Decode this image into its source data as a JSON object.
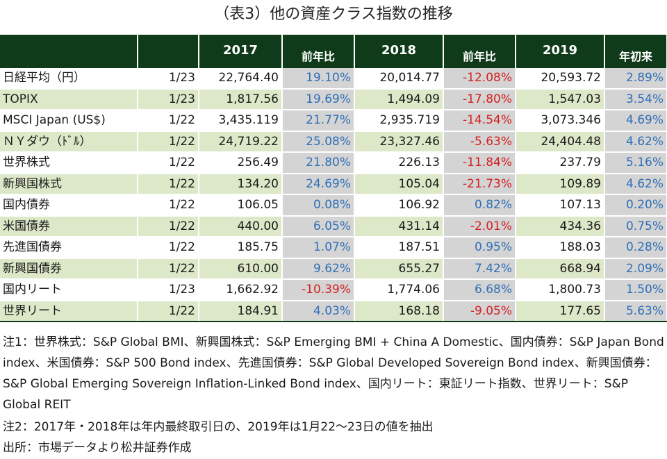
{
  "title": "（表3）他の資産クラス指数の推移",
  "header": {
    "col_2017": "2017",
    "col_chg1": "前年比",
    "col_2018": "2018",
    "col_chg2": "前年比",
    "col_2019": "2019",
    "col_ytd": "年初来"
  },
  "rows": [
    {
      "name": "日経平均（円）",
      "date": "1/23",
      "v2017": "22,764.40",
      "c2017": "19.10%",
      "v2018": "20,014.77",
      "c2018": "-12.08%",
      "v2019": "20,593.72",
      "ytd": "2.89%"
    },
    {
      "name": "TOPIX",
      "date": "1/23",
      "v2017": "1,817.56",
      "c2017": "19.69%",
      "v2018": "1,494.09",
      "c2018": "-17.80%",
      "v2019": "1,547.03",
      "ytd": "3.54%"
    },
    {
      "name": "MSCI Japan (US$)",
      "date": "1/22",
      "v2017": "3,435.119",
      "c2017": "21.77%",
      "v2018": "2,935.719",
      "c2018": "-14.54%",
      "v2019": "3,073.346",
      "ytd": "4.69%"
    },
    {
      "name": "ＮＹダウ（ﾄﾞﾙ）",
      "date": "1/22",
      "v2017": "24,719.22",
      "c2017": "25.08%",
      "v2018": "23,327.46",
      "c2018": "-5.63%",
      "v2019": "24,404.48",
      "ytd": "4.62%"
    },
    {
      "name": "世界株式",
      "date": "1/22",
      "v2017": "256.49",
      "c2017": "21.80%",
      "v2018": "226.13",
      "c2018": "-11.84%",
      "v2019": "237.79",
      "ytd": "5.16%"
    },
    {
      "name": "新興国株式",
      "date": "1/22",
      "v2017": "134.20",
      "c2017": "24.69%",
      "v2018": "105.04",
      "c2018": "-21.73%",
      "v2019": "109.89",
      "ytd": "4.62%"
    },
    {
      "name": "国内債券",
      "date": "1/22",
      "v2017": "106.05",
      "c2017": "0.08%",
      "v2018": "106.92",
      "c2018": "0.82%",
      "v2019": "107.13",
      "ytd": "0.20%"
    },
    {
      "name": "米国債券",
      "date": "1/22",
      "v2017": "440.00",
      "c2017": "6.05%",
      "v2018": "431.14",
      "c2018": "-2.01%",
      "v2019": "434.36",
      "ytd": "0.75%"
    },
    {
      "name": "先進国債券",
      "date": "1/22",
      "v2017": "185.75",
      "c2017": "1.07%",
      "v2018": "187.51",
      "c2018": "0.95%",
      "v2019": "188.03",
      "ytd": "0.28%"
    },
    {
      "name": "新興国債券",
      "date": "1/22",
      "v2017": "610.00",
      "c2017": "9.62%",
      "v2018": "655.27",
      "c2018": "7.42%",
      "v2019": "668.94",
      "ytd": "2.09%"
    },
    {
      "name": "国内リート",
      "date": "1/23",
      "v2017": "1,662.92",
      "c2017": "-10.39%",
      "v2018": "1,774.06",
      "c2018": "6.68%",
      "v2019": "1,800.73",
      "ytd": "1.50%"
    },
    {
      "name": "世界リート",
      "date": "1/22",
      "v2017": "184.91",
      "c2017": "4.03%",
      "v2018": "168.18",
      "c2018": "-9.05%",
      "v2019": "177.65",
      "ytd": "5.63%"
    }
  ],
  "colors": {
    "header_bg": "#0f3b1a",
    "even_row_bg": "#dce8c8",
    "change_col_bg": "#d4d4d4",
    "positive": "#2e6fb7",
    "negative": "#d51f1f"
  },
  "notes": {
    "note1": "注1：世界株式：S&P Global BMI、新興国株式：S&P Emerging BMI + China A Domestic、国内債券：S&P Japan Bond index、米国債券：S&P 500 Bond index、先進国債券：S&P Global Developed Sovereign Bond index、新興国債券：S&P Global Emerging Sovereign Inflation-Linked Bond index、国内リート：東証リート指数、世界リート：S&P Global REIT",
    "note2": "注2：2017年・2018年は年内最終取引日の、2019年は1月22～23日の値を抽出",
    "source": "出所：市場データより松井証券作成"
  }
}
